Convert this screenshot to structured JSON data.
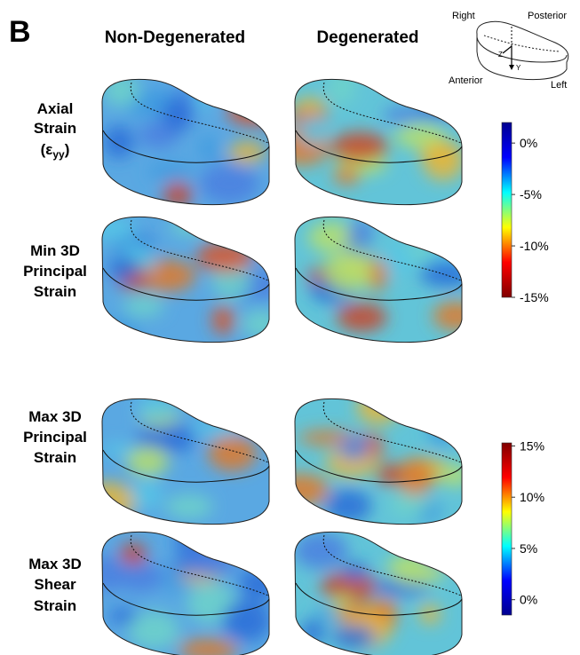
{
  "panel_label": "B",
  "columns": [
    "Non-Degenerated",
    "Degenerated"
  ],
  "rows": [
    {
      "lines": [
        "Axial",
        "Strain"
      ],
      "symbol": "(ε",
      "subscript": "yy",
      "close": ")"
    },
    {
      "lines": [
        "Min 3D",
        "Principal",
        "Strain"
      ]
    },
    {
      "lines": [
        "Max 3D",
        "Principal",
        "Strain"
      ]
    },
    {
      "lines": [
        "Max 3D",
        "Shear",
        "Strain"
      ]
    }
  ],
  "orientation": {
    "right": "Right",
    "posterior": "Posterior",
    "anterior": "Anterior",
    "left": "Left",
    "axes": [
      "Z",
      "Y"
    ]
  },
  "colorbars": [
    {
      "lim": [
        -15,
        2
      ],
      "ticks": [
        {
          "value": 0,
          "label": "0%"
        },
        {
          "value": -5,
          "label": "-5%"
        },
        {
          "value": -10,
          "label": "-10%"
        },
        {
          "value": -15,
          "label": "-15%"
        }
      ],
      "colors_low_to_high": [
        "#800000",
        "#ff0000",
        "#ffff00",
        "#00ffff",
        "#0000ff",
        "#00008f"
      ]
    },
    {
      "lim": [
        -1.5,
        15.3
      ],
      "ticks": [
        {
          "value": 15,
          "label": "15%"
        },
        {
          "value": 10,
          "label": "10%"
        },
        {
          "value": 5,
          "label": "5%"
        },
        {
          "value": 0,
          "label": "0%"
        }
      ],
      "colors_low_to_high": [
        "#00008f",
        "#0000ff",
        "#00ffff",
        "#ffff00",
        "#ff0000",
        "#800000"
      ]
    }
  ]
}
